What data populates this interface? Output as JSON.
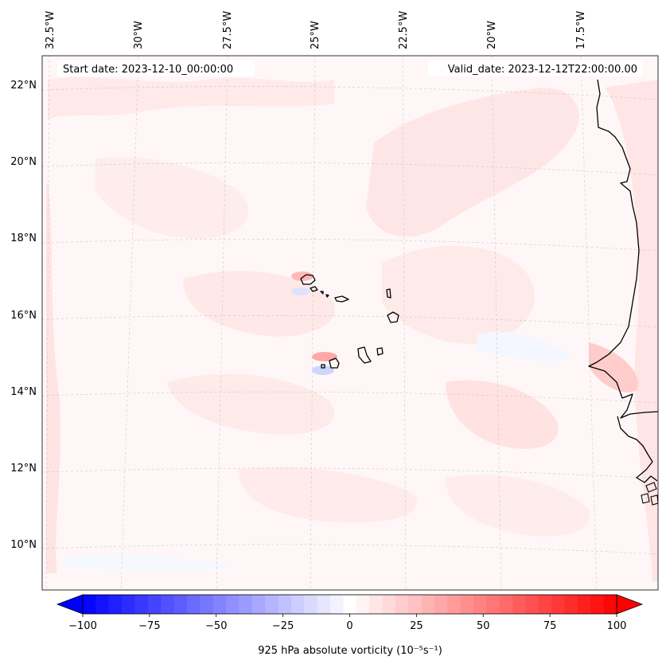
{
  "map": {
    "start_label": "Start date: 2023-12-10_00:00:00",
    "valid_label": "Valid_date: 2023-12-12T22:00:00.00",
    "lon_labels": [
      "32.5°W",
      "30°W",
      "27.5°W",
      "25°W",
      "22.5°W",
      "20°W",
      "17.5°W"
    ],
    "lat_labels": [
      "22°N",
      "20°N",
      "18°N",
      "16°N",
      "14°N",
      "12°N",
      "10°N"
    ]
  },
  "colorbar": {
    "ticks": [
      "−100",
      "−75",
      "−50",
      "−25",
      "0",
      "25",
      "50",
      "75",
      "100"
    ],
    "label": "925 hPa absolute vorticity (10⁻⁵s⁻¹)",
    "min": -100,
    "max": 100,
    "levels": 41,
    "colors": {
      "negative": "#0000ff",
      "neutral": "#ffffff",
      "positive": "#ff0000"
    }
  }
}
